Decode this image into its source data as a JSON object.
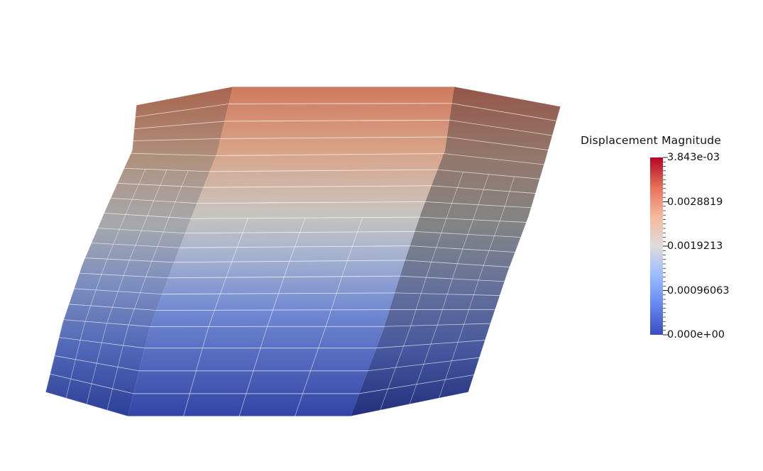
{
  "legend": {
    "title": "Displacement Magnitude",
    "range": [
      0,
      0.003843
    ],
    "labels": [
      {
        "text": "3.843e-03",
        "value": 0.003843
      },
      {
        "text": "0.0028819",
        "value": 0.0028819
      },
      {
        "text": "0.0019213",
        "value": 0.0019213
      },
      {
        "text": "0.00096063",
        "value": 0.00096063
      },
      {
        "text": "0.000e+00",
        "value": 0
      }
    ],
    "colormap": [
      "#3b4cc0",
      "#7b9ff9",
      "#c0d4f5",
      "#dddcdc",
      "#f2cbb7",
      "#ee8468",
      "#b40426"
    ],
    "minor_tick_count": 40
  },
  "mesh": {
    "edge_color": "#ffffff",
    "shading": "smooth",
    "top_color": "#cf7a5e",
    "bottom_color": "#3547a8"
  }
}
